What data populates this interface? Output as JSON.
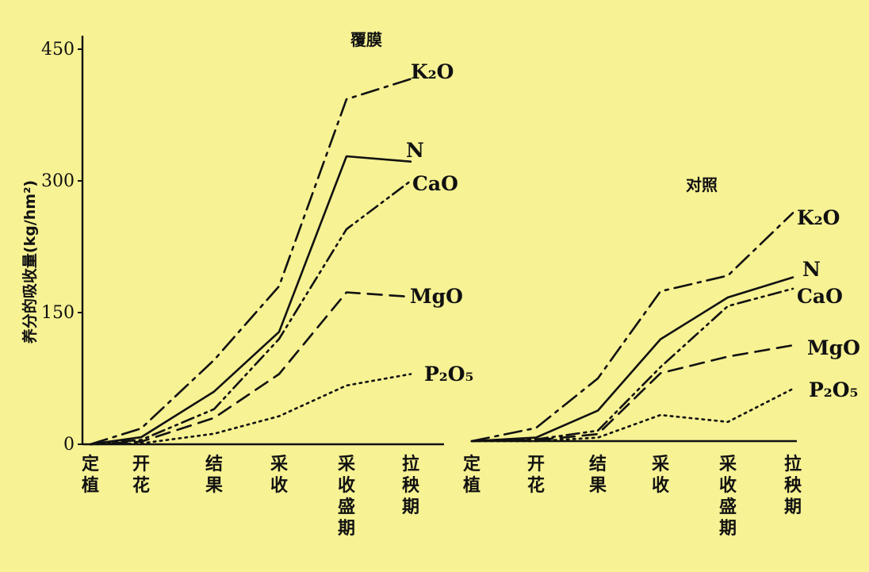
{
  "chart_data": {
    "type": "line",
    "ylabel": "养分的吸收量(kg/hm²)",
    "ylim": [
      0,
      450
    ],
    "yticks": [
      "0",
      "150",
      "300",
      "450"
    ],
    "panels": [
      {
        "title": "覆膜",
        "categories": [
          "定植",
          "开花",
          "结果",
          "采收",
          "采收盛期",
          "拉秧期"
        ],
        "series": [
          {
            "name": "K₂O",
            "style": "dashdot",
            "values": [
              0,
              18,
              96,
              180,
              393,
              416
            ]
          },
          {
            "name": "N",
            "style": "solid",
            "values": [
              0,
              8,
              60,
              128,
              328,
              322
            ]
          },
          {
            "name": "CaO",
            "style": "dashdotdot",
            "values": [
              0,
              5,
              40,
              120,
              245,
              300
            ]
          },
          {
            "name": "MgO",
            "style": "dashed",
            "values": [
              0,
              3,
              30,
              80,
              173,
              168
            ]
          },
          {
            "name": "P₂O₅",
            "style": "dotted",
            "values": [
              0,
              1,
              12,
              32,
              67,
              80
            ]
          }
        ]
      },
      {
        "title": "对照",
        "categories": [
          "定植",
          "开花",
          "结果",
          "采收",
          "采收盛期",
          "拉秧期"
        ],
        "series": [
          {
            "name": "K₂O",
            "style": "dashdot",
            "values": [
              0,
              15,
              72,
              172,
              190,
              262
            ]
          },
          {
            "name": "N",
            "style": "solid",
            "values": [
              0,
              4,
              35,
              117,
              165,
              188
            ]
          },
          {
            "name": "CaO",
            "style": "dashdotdot",
            "values": [
              0,
              2,
              12,
              85,
              155,
              175
            ]
          },
          {
            "name": "MgO",
            "style": "dashed",
            "values": [
              0,
              1,
              8,
              78,
              97,
              110
            ]
          },
          {
            "name": "P₂O₅",
            "style": "dotted",
            "values": [
              0,
              0,
              4,
              30,
              22,
              60
            ]
          }
        ]
      }
    ]
  }
}
